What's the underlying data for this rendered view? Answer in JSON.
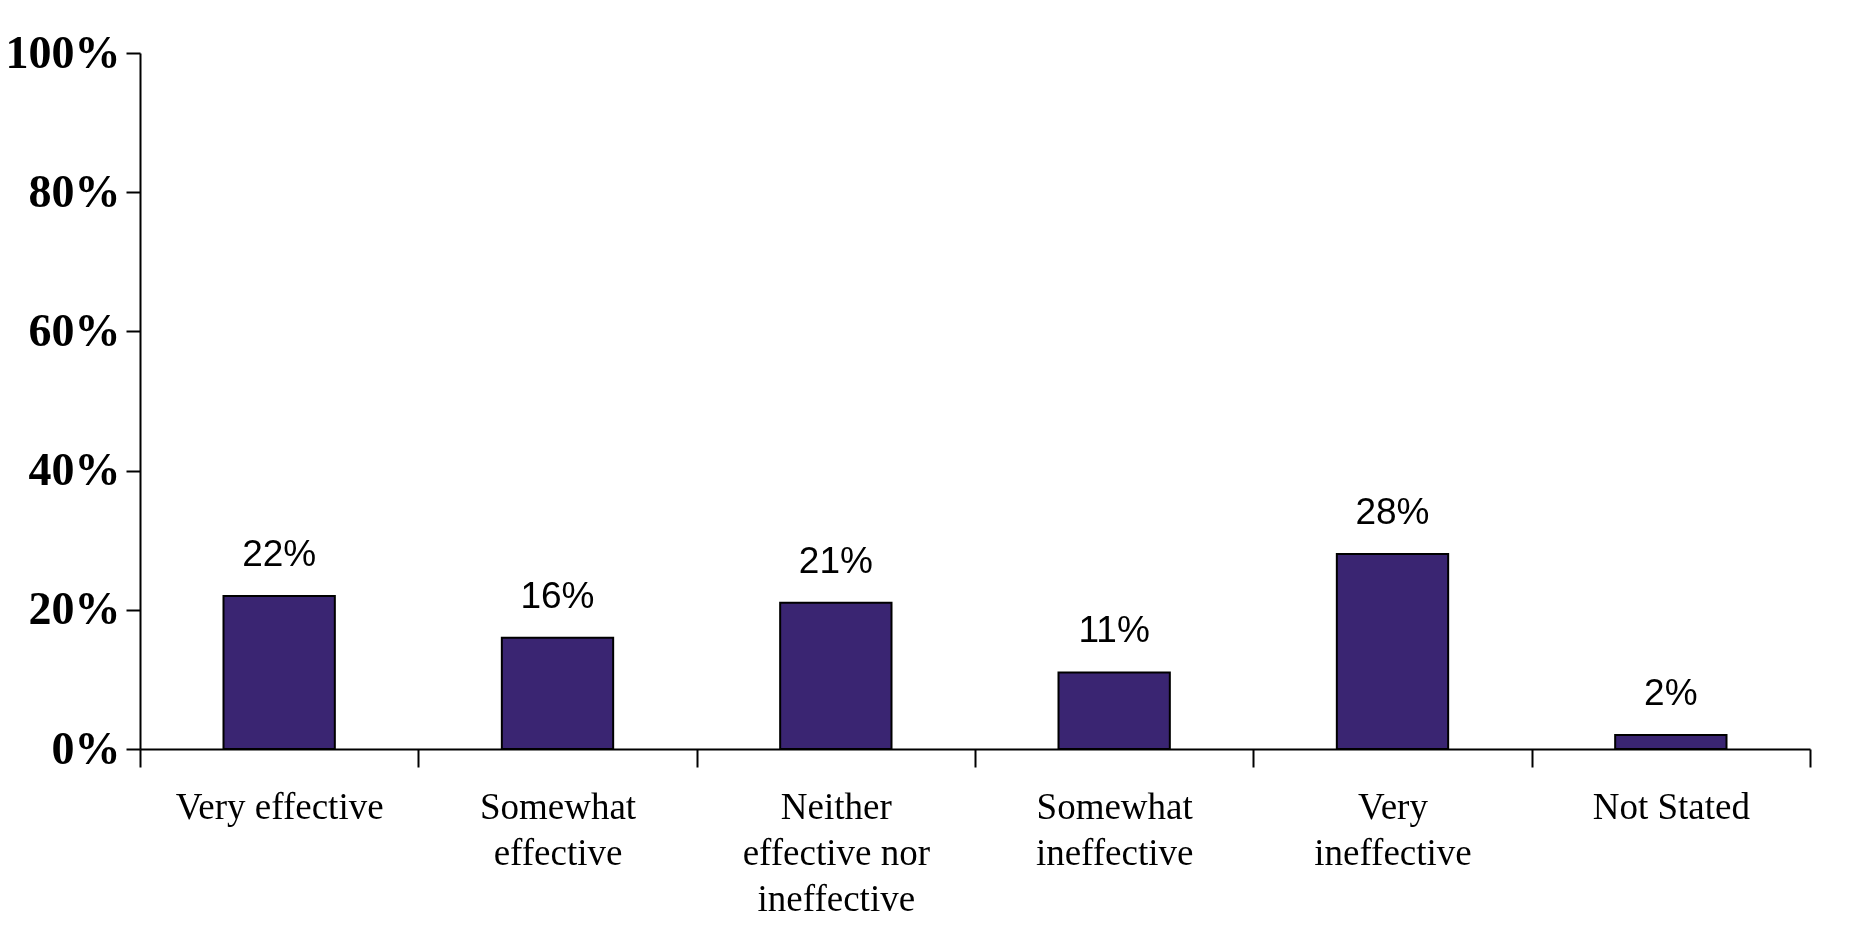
{
  "chart_data": {
    "type": "bar",
    "categories": [
      "Very effective",
      "Somewhat effective",
      "Neither effective nor ineffective",
      "Somewhat ineffective",
      "Very ineffective",
      "Not Stated"
    ],
    "values": [
      22,
      16,
      21,
      11,
      28,
      2
    ],
    "color": "#3a2572",
    "ylim": [
      0,
      100
    ],
    "yticks": [
      {
        "value": 0,
        "label": "0%"
      },
      {
        "value": 20,
        "label": "20%"
      },
      {
        "value": 40,
        "label": "40%"
      },
      {
        "value": 60,
        "label": "60%"
      },
      {
        "value": 80,
        "label": "80%"
      },
      {
        "value": 100,
        "label": "100%"
      }
    ],
    "value_labels": [
      "22%",
      "16%",
      "21%",
      "11%",
      "28%",
      "2%"
    ],
    "grid": false
  }
}
